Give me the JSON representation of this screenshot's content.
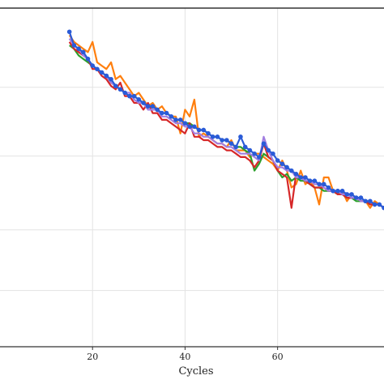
{
  "chart_data": {
    "type": "line",
    "xlabel": "Cycles",
    "ylabel": "",
    "title": "",
    "xlim": [
      0,
      83
    ],
    "ylim": [
      0,
      1
    ],
    "x_ticks": [
      20,
      40,
      60
    ],
    "y_ticks": [
      0.166,
      0.345,
      0.563,
      0.766
    ],
    "grid": true,
    "series": [
      {
        "color": "#ff7f0e",
        "marker": "none",
        "x": [
          15,
          16,
          17,
          18,
          19,
          20,
          21,
          22,
          23,
          24,
          25,
          26,
          27,
          28,
          29,
          30,
          31,
          32,
          33,
          34,
          35,
          36,
          37,
          38,
          39,
          40,
          41,
          42,
          43,
          44,
          45,
          46,
          47,
          48,
          49,
          50,
          51,
          52,
          53,
          54,
          55,
          56,
          57,
          58,
          59,
          60,
          61,
          62,
          63,
          64,
          65,
          66,
          67,
          68,
          69,
          70,
          71,
          72,
          73,
          74,
          75,
          76,
          77,
          78,
          79,
          80,
          81,
          82,
          83
        ],
        "values": [
          0.92,
          0.9,
          0.89,
          0.88,
          0.87,
          0.9,
          0.84,
          0.83,
          0.82,
          0.84,
          0.79,
          0.8,
          0.78,
          0.76,
          0.74,
          0.75,
          0.73,
          0.71,
          0.72,
          0.7,
          0.71,
          0.69,
          0.68,
          0.68,
          0.63,
          0.7,
          0.68,
          0.73,
          0.62,
          0.63,
          0.62,
          0.61,
          0.6,
          0.6,
          0.59,
          0.61,
          0.58,
          0.58,
          0.58,
          0.56,
          0.57,
          0.57,
          0.56,
          0.55,
          0.54,
          0.52,
          0.55,
          0.52,
          0.47,
          0.48,
          0.52,
          0.48,
          0.49,
          0.47,
          0.42,
          0.5,
          0.5,
          0.46,
          0.45,
          0.46,
          0.43,
          0.45,
          0.44,
          0.43,
          0.43,
          0.41,
          0.43,
          0.42,
          0.41
        ]
      },
      {
        "color": "#2ca02c",
        "marker": "none",
        "x": [
          15,
          16,
          17,
          18,
          19,
          20,
          21,
          22,
          23,
          24,
          25,
          26,
          27,
          28,
          29,
          30,
          31,
          32,
          33,
          34,
          35,
          36,
          37,
          38,
          39,
          40,
          41,
          42,
          43,
          44,
          45,
          46,
          47,
          48,
          49,
          50,
          51,
          52,
          53,
          54,
          55,
          56,
          57,
          58,
          59,
          60,
          61,
          62,
          63,
          64,
          65,
          66,
          67,
          68,
          69,
          70,
          71,
          72,
          73,
          74,
          75,
          76,
          77,
          78,
          79,
          80,
          81,
          82,
          83
        ],
        "values": [
          0.89,
          0.88,
          0.86,
          0.85,
          0.84,
          0.83,
          0.82,
          0.81,
          0.8,
          0.78,
          0.77,
          0.76,
          0.75,
          0.74,
          0.74,
          0.73,
          0.72,
          0.71,
          0.71,
          0.7,
          0.69,
          0.69,
          0.68,
          0.67,
          0.67,
          0.66,
          0.66,
          0.65,
          0.64,
          0.64,
          0.63,
          0.62,
          0.62,
          0.61,
          0.61,
          0.6,
          0.59,
          0.59,
          0.58,
          0.57,
          0.52,
          0.54,
          0.57,
          0.56,
          0.55,
          0.52,
          0.5,
          0.51,
          0.49,
          0.5,
          0.49,
          0.49,
          0.48,
          0.47,
          0.47,
          0.46,
          0.46,
          0.46,
          0.45,
          0.45,
          0.44,
          0.44,
          0.43,
          0.43,
          0.43,
          0.42,
          0.42,
          0.42,
          0.41
        ]
      },
      {
        "color": "#d62728",
        "marker": "none",
        "x": [
          15,
          16,
          17,
          18,
          19,
          20,
          21,
          22,
          23,
          24,
          25,
          26,
          27,
          28,
          29,
          30,
          31,
          32,
          33,
          34,
          35,
          36,
          37,
          38,
          39,
          40,
          41,
          42,
          43,
          44,
          45,
          46,
          47,
          48,
          49,
          50,
          51,
          52,
          53,
          54,
          55,
          56,
          57,
          58,
          59,
          60,
          61,
          62,
          63,
          64,
          65,
          66,
          67,
          68,
          69,
          70,
          71,
          72,
          73,
          74,
          75,
          76,
          77,
          78,
          79,
          80,
          81,
          82,
          83
        ],
        "values": [
          0.9,
          0.88,
          0.87,
          0.86,
          0.85,
          0.82,
          0.82,
          0.8,
          0.79,
          0.77,
          0.76,
          0.78,
          0.74,
          0.74,
          0.72,
          0.72,
          0.7,
          0.72,
          0.69,
          0.69,
          0.67,
          0.67,
          0.66,
          0.65,
          0.64,
          0.63,
          0.66,
          0.62,
          0.62,
          0.61,
          0.61,
          0.6,
          0.59,
          0.59,
          0.58,
          0.58,
          0.57,
          0.56,
          0.56,
          0.55,
          0.53,
          0.55,
          0.6,
          0.56,
          0.55,
          0.52,
          0.51,
          0.5,
          0.41,
          0.51,
          0.5,
          0.49,
          0.48,
          0.47,
          0.47,
          0.47,
          0.46,
          0.46,
          0.45,
          0.45,
          0.44,
          0.44,
          0.44,
          0.43,
          0.43,
          0.42,
          0.42,
          0.42,
          0.41
        ]
      },
      {
        "color": "#a17de0",
        "marker": "none",
        "x": [
          15,
          16,
          17,
          18,
          19,
          20,
          21,
          22,
          23,
          24,
          25,
          26,
          27,
          28,
          29,
          30,
          31,
          32,
          33,
          34,
          35,
          36,
          37,
          38,
          39,
          40,
          41,
          42,
          43,
          44,
          45,
          46,
          47,
          48,
          49,
          50,
          51,
          52,
          53,
          54,
          55,
          56,
          57,
          58,
          59,
          60,
          61,
          62,
          63,
          64,
          65,
          66,
          67,
          68,
          69,
          70,
          71,
          72,
          73,
          74,
          75,
          76,
          77,
          78,
          79,
          80,
          81,
          82,
          83
        ],
        "values": [
          0.91,
          0.89,
          0.88,
          0.86,
          0.85,
          0.83,
          0.82,
          0.81,
          0.8,
          0.78,
          0.77,
          0.76,
          0.75,
          0.75,
          0.73,
          0.72,
          0.72,
          0.7,
          0.7,
          0.7,
          0.68,
          0.68,
          0.67,
          0.66,
          0.66,
          0.65,
          0.65,
          0.63,
          0.63,
          0.62,
          0.62,
          0.61,
          0.6,
          0.6,
          0.59,
          0.59,
          0.58,
          0.57,
          0.57,
          0.57,
          0.56,
          0.55,
          0.62,
          0.58,
          0.55,
          0.53,
          0.53,
          0.52,
          0.52,
          0.5,
          0.5,
          0.49,
          0.49,
          0.48,
          0.48,
          0.47,
          0.46,
          0.46,
          0.46,
          0.45,
          0.45,
          0.44,
          0.44,
          0.43,
          0.43,
          0.43,
          0.42,
          0.42,
          0.41
        ]
      },
      {
        "color": "#2a5bd7",
        "marker": "circle",
        "x": [
          15,
          16,
          17,
          18,
          19,
          20,
          21,
          22,
          23,
          24,
          25,
          26,
          27,
          28,
          29,
          30,
          31,
          32,
          33,
          34,
          35,
          36,
          37,
          38,
          39,
          40,
          41,
          42,
          43,
          44,
          45,
          46,
          47,
          48,
          49,
          50,
          51,
          52,
          53,
          54,
          55,
          56,
          57,
          58,
          59,
          60,
          61,
          62,
          63,
          64,
          65,
          66,
          67,
          68,
          69,
          70,
          71,
          72,
          73,
          74,
          75,
          76,
          77,
          78,
          79,
          80,
          81,
          82,
          83
        ],
        "values": [
          0.93,
          0.89,
          0.88,
          0.87,
          0.85,
          0.83,
          0.82,
          0.81,
          0.8,
          0.79,
          0.77,
          0.76,
          0.75,
          0.74,
          0.74,
          0.73,
          0.72,
          0.71,
          0.71,
          0.7,
          0.69,
          0.69,
          0.68,
          0.67,
          0.67,
          0.66,
          0.65,
          0.65,
          0.64,
          0.64,
          0.63,
          0.62,
          0.62,
          0.61,
          0.61,
          0.6,
          0.59,
          0.62,
          0.59,
          0.58,
          0.57,
          0.56,
          0.6,
          0.58,
          0.57,
          0.55,
          0.54,
          0.53,
          0.52,
          0.51,
          0.5,
          0.5,
          0.49,
          0.49,
          0.48,
          0.48,
          0.47,
          0.46,
          0.46,
          0.46,
          0.45,
          0.45,
          0.44,
          0.44,
          0.43,
          0.43,
          0.42,
          0.42,
          0.41
        ]
      }
    ]
  }
}
